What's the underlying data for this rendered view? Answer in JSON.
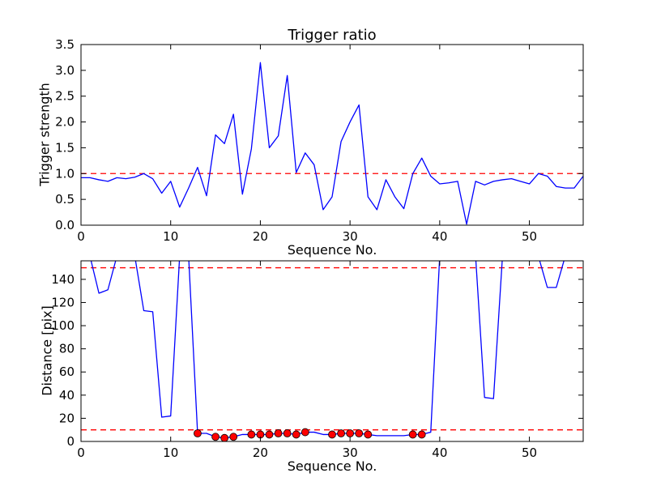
{
  "figure": {
    "background": "#ffffff",
    "frame_color": "#000000",
    "line_color": "#0000ff",
    "threshold_color": "#ff0000",
    "marker_color": "#ff0000"
  },
  "chart_data": [
    {
      "type": "line",
      "title": "Trigger ratio",
      "xlabel": "Sequence No.",
      "ylabel": "Trigger strength",
      "xlim": [
        0,
        56
      ],
      "ylim": [
        0.0,
        3.5
      ],
      "grid": false,
      "legend": "none",
      "xticks": [
        0,
        10,
        20,
        30,
        40,
        50
      ],
      "xtick_labels": [
        "0",
        "10",
        "20",
        "30",
        "40",
        "50"
      ],
      "yticks": [
        0.0,
        0.5,
        1.0,
        1.5,
        2.0,
        2.5,
        3.0,
        3.5
      ],
      "ytick_labels": [
        "0.0",
        "0.5",
        "1.0",
        "1.5",
        "2.0",
        "2.5",
        "3.0",
        "3.5"
      ],
      "series": [
        {
          "name": "trigger-strength",
          "color": "#0000ff",
          "values": [
            0.92,
            0.92,
            0.88,
            0.85,
            0.92,
            0.9,
            0.93,
            1.0,
            0.9,
            0.62,
            0.85,
            0.35,
            0.72,
            1.12,
            0.57,
            1.75,
            1.58,
            2.15,
            0.6,
            1.48,
            3.15,
            1.5,
            1.73,
            2.9,
            1.02,
            1.4,
            1.17,
            0.3,
            0.55,
            1.62,
            2.0,
            2.33,
            0.55,
            0.3,
            0.88,
            0.55,
            0.32,
            1.0,
            1.3,
            0.95,
            0.8,
            0.82,
            0.85,
            0.02,
            0.85,
            0.78,
            0.85,
            0.88,
            0.9,
            0.85,
            0.8,
            1.0,
            0.95,
            0.75,
            0.72,
            0.72,
            0.95
          ]
        }
      ],
      "thresholds": [
        {
          "y": 1.0,
          "color": "#ff0000",
          "style": "dashed"
        }
      ]
    },
    {
      "type": "line",
      "title": "",
      "xlabel": "Sequence No.",
      "ylabel": "Distance [pix]",
      "xlim": [
        0,
        56
      ],
      "ylim": [
        0,
        156
      ],
      "grid": false,
      "legend": "none",
      "xticks": [
        0,
        10,
        20,
        30,
        40,
        50
      ],
      "xtick_labels": [
        "0",
        "10",
        "20",
        "30",
        "40",
        "50"
      ],
      "yticks": [
        0,
        20,
        40,
        60,
        80,
        100,
        120,
        140
      ],
      "ytick_labels": [
        "0",
        "20",
        "40",
        "60",
        "80",
        "100",
        "120",
        "140"
      ],
      "series": [
        {
          "name": "distance",
          "color": "#0000ff",
          "values": [
            160,
            160,
            128,
            131,
            160,
            160,
            160,
            113,
            112,
            21,
            22,
            160,
            160,
            7,
            7,
            4,
            3,
            4,
            6,
            6,
            6,
            6,
            7,
            7,
            6,
            8,
            8,
            6,
            6,
            7,
            7,
            7,
            6,
            5,
            5,
            5,
            5,
            6,
            6,
            8,
            160,
            160,
            160,
            160,
            160,
            38,
            37,
            160,
            160,
            160,
            160,
            160,
            133,
            133,
            160,
            160,
            160
          ]
        }
      ],
      "markers": {
        "name": "matched-points",
        "color": "#ff0000",
        "x": [
          13,
          15,
          16,
          17,
          19,
          20,
          21,
          22,
          23,
          24,
          25,
          28,
          29,
          30,
          31,
          32,
          37,
          38
        ],
        "values": [
          7,
          4,
          3,
          4,
          6,
          6,
          6,
          7,
          7,
          6,
          8,
          6,
          7,
          7,
          7,
          6,
          6,
          6
        ]
      },
      "thresholds": [
        {
          "y": 150,
          "color": "#ff0000",
          "style": "dashed"
        },
        {
          "y": 10,
          "color": "#ff0000",
          "style": "dashed"
        }
      ]
    }
  ]
}
